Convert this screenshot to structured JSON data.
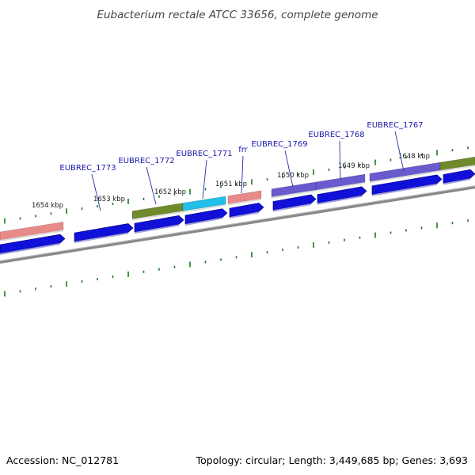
{
  "title": "Eubacterium rectale ATCC 33656, complete genome",
  "footer": {
    "accession": "Accession: NC_012781",
    "summary": "Topology: circular; Length: 3,449,685 bp; Genes: 3,693"
  },
  "gene_labels": [
    {
      "name": "EUBREC_1773"
    },
    {
      "name": "EUBREC_1772"
    },
    {
      "name": "EUBREC_1771"
    },
    {
      "name": "frr"
    },
    {
      "name": "EUBREC_1769"
    },
    {
      "name": "EUBREC_1768"
    },
    {
      "name": "EUBREC_1767"
    }
  ],
  "kbp_labels": [
    "1654 kbp",
    "1653 kbp",
    "1652 kbp",
    "1651 kbp",
    "1650 kbp",
    "1649 kbp",
    "1648 kbp"
  ],
  "colors": {
    "pink": "#e88a8a",
    "olive": "#6f8a2a",
    "cyan": "#22bfe8",
    "purple": "#6a5ad0",
    "blue": "#1010d8",
    "backbone": "#888888",
    "ticks": "#1a7a1a",
    "label_line": "#2233aa"
  }
}
